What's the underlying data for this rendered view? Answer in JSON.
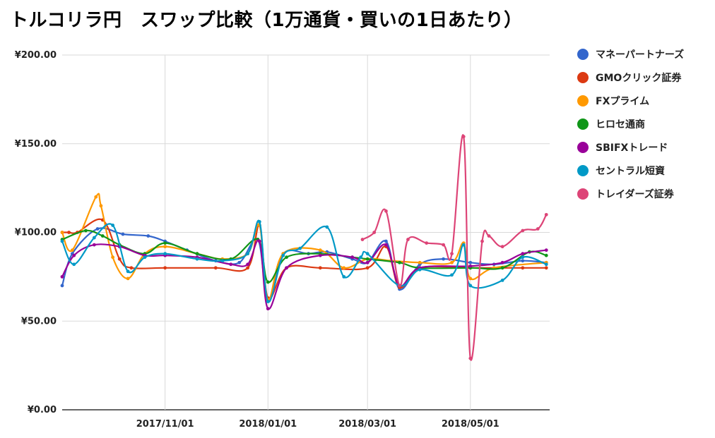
{
  "title": "トルコリラ円　スワップ比較（1万通貨・買いの1日あたり）",
  "chart_data": {
    "type": "line",
    "title": "トルコリラ円　スワップ比較（1万通貨・買いの1日あたり）",
    "y_ticks": [
      "¥0.00",
      "¥50.00",
      "¥100.00",
      "¥150.00",
      "¥200.00"
    ],
    "ylim": [
      0,
      200
    ],
    "grid": true,
    "legend": "right",
    "x_ticks": [
      {
        "date": "2017-11-01",
        "label": "2017/11/01"
      },
      {
        "date": "2018-01-01",
        "label": "2018/01/01"
      },
      {
        "date": "2018-03-01",
        "label": "2018/03/01"
      },
      {
        "date": "2018-05-01",
        "label": "2018/05/01"
      }
    ],
    "xlim": [
      "2017-09-01",
      "2018-06-17"
    ],
    "series": [
      {
        "name": "マネーパートナーズ",
        "color": "#3366cc",
        "x": [
          "2017-09-01",
          "2017-09-07",
          "2017-09-22",
          "2017-10-07",
          "2017-10-22",
          "2017-11-01",
          "2017-11-14",
          "2017-12-01",
          "2017-12-15",
          "2017-12-26",
          "2018-01-01",
          "2018-01-10",
          "2018-01-25",
          "2018-02-05",
          "2018-02-20",
          "2018-03-01",
          "2018-03-12",
          "2018-03-20",
          "2018-04-01",
          "2018-04-15",
          "2018-05-01",
          "2018-05-15",
          "2018-06-01",
          "2018-06-15"
        ],
        "values": [
          70,
          88,
          102,
          99,
          98,
          95,
          90,
          84,
          83,
          96,
          62,
          88,
          88,
          89,
          85,
          83,
          95,
          68,
          82,
          85,
          83,
          82,
          84,
          83
        ]
      },
      {
        "name": "GMOクリック証券",
        "color": "#dc3912",
        "x": [
          "2017-09-01",
          "2017-09-05",
          "2017-09-10",
          "2017-09-25",
          "2017-10-05",
          "2017-10-12",
          "2017-11-01",
          "2017-12-01",
          "2017-12-20",
          "2017-12-27",
          "2018-01-01",
          "2018-01-12",
          "2018-02-01",
          "2018-03-01",
          "2018-03-12",
          "2018-03-20",
          "2018-04-01",
          "2018-05-01",
          "2018-06-01",
          "2018-06-15"
        ],
        "values": [
          100,
          100,
          100,
          107,
          85,
          80,
          80,
          80,
          80,
          104,
          63,
          80,
          80,
          80,
          92,
          69,
          80,
          80,
          80,
          80
        ]
      },
      {
        "name": "FXプライム",
        "color": "#ff9900",
        "x": [
          "2017-09-01",
          "2017-09-07",
          "2017-09-21",
          "2017-09-24",
          "2017-10-01",
          "2017-10-10",
          "2017-10-20",
          "2017-11-01",
          "2017-11-20",
          "2017-12-05",
          "2017-12-20",
          "2017-12-27",
          "2018-01-01",
          "2018-01-10",
          "2018-02-01",
          "2018-02-15",
          "2018-03-01",
          "2018-03-15",
          "2018-04-01",
          "2018-04-20",
          "2018-04-27",
          "2018-05-01",
          "2018-05-15",
          "2018-06-15"
        ],
        "values": [
          100,
          90,
          120,
          115,
          86,
          74,
          88,
          92,
          88,
          85,
          88,
          104,
          62,
          88,
          90,
          80,
          85,
          84,
          83,
          83,
          94,
          74,
          80,
          83
        ]
      },
      {
        "name": "ヒロセ通商",
        "color": "#109618",
        "x": [
          "2017-09-01",
          "2017-09-15",
          "2017-09-25",
          "2017-10-05",
          "2017-10-20",
          "2017-11-01",
          "2017-11-20",
          "2017-12-10",
          "2017-12-26",
          "2018-01-01",
          "2018-01-12",
          "2018-02-01",
          "2018-02-20",
          "2018-03-01",
          "2018-03-20",
          "2018-04-01",
          "2018-05-01",
          "2018-05-20",
          "2018-06-05",
          "2018-06-15"
        ],
        "values": [
          96,
          101,
          98,
          93,
          88,
          94,
          88,
          85,
          96,
          72,
          86,
          88,
          86,
          85,
          83,
          80,
          80,
          80,
          89,
          87
        ]
      },
      {
        "name": "SBIFXトレード",
        "color": "#990099",
        "x": [
          "2017-09-01",
          "2017-09-08",
          "2017-09-20",
          "2017-10-05",
          "2017-10-20",
          "2017-11-01",
          "2017-11-20",
          "2017-12-10",
          "2017-12-20",
          "2017-12-27",
          "2018-01-01",
          "2018-01-12",
          "2018-02-01",
          "2018-02-20",
          "2018-03-01",
          "2018-03-12",
          "2018-03-20",
          "2018-04-01",
          "2018-05-01",
          "2018-05-20",
          "2018-06-01",
          "2018-06-15"
        ],
        "values": [
          75,
          87,
          93,
          92,
          87,
          87,
          86,
          82,
          82,
          95,
          57,
          80,
          87,
          86,
          83,
          93,
          70,
          80,
          81,
          83,
          88,
          90
        ]
      },
      {
        "name": "セントラル短資",
        "color": "#0099c6",
        "x": [
          "2017-09-01",
          "2017-09-08",
          "2017-09-20",
          "2017-10-01",
          "2017-10-10",
          "2017-10-20",
          "2017-11-01",
          "2017-11-20",
          "2017-12-05",
          "2017-12-20",
          "2017-12-27",
          "2018-01-01",
          "2018-01-10",
          "2018-01-20",
          "2018-02-05",
          "2018-02-15",
          "2018-02-25",
          "2018-03-01",
          "2018-03-20",
          "2018-04-01",
          "2018-04-20",
          "2018-04-27",
          "2018-05-01",
          "2018-05-20",
          "2018-06-01",
          "2018-06-15"
        ],
        "values": [
          95,
          82,
          97,
          104,
          78,
          86,
          88,
          85,
          84,
          88,
          106,
          61,
          87,
          91,
          103,
          75,
          86,
          88,
          70,
          79,
          76,
          93,
          70,
          73,
          86,
          82
        ]
      },
      {
        "name": "トレイダーズ証券",
        "color": "#dd4477",
        "x": [
          "2018-02-26",
          "2018-03-05",
          "2018-03-12",
          "2018-03-20",
          "2018-03-25",
          "2018-04-05",
          "2018-04-15",
          "2018-04-20",
          "2018-04-27",
          "2018-05-01",
          "2018-05-08",
          "2018-05-12",
          "2018-05-20",
          "2018-06-01",
          "2018-06-10",
          "2018-06-15"
        ],
        "values": [
          96,
          100,
          112,
          70,
          96,
          94,
          93,
          88,
          154,
          29,
          95,
          98,
          92,
          101,
          102,
          110
        ]
      }
    ]
  }
}
